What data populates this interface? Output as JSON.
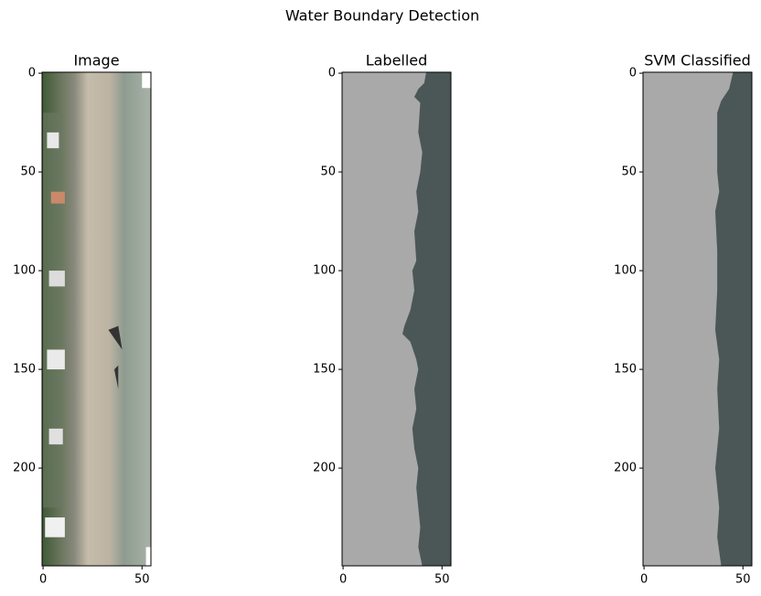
{
  "title": "Water Boundary Detection",
  "chart_data": [
    {
      "type": "image",
      "title": "Image",
      "xlim": [
        -0.5,
        54.5
      ],
      "ylim": [
        249.5,
        -0.5
      ],
      "xticks": [
        0,
        50
      ],
      "yticks": [
        0,
        50,
        100,
        150,
        200
      ]
    },
    {
      "type": "image",
      "title": "Labelled",
      "xlim": [
        -0.5,
        54.5
      ],
      "ylim": [
        249.5,
        -0.5
      ],
      "xticks": [
        0,
        50
      ],
      "yticks": [
        0,
        50,
        100,
        150,
        200
      ]
    },
    {
      "type": "image",
      "title": "SVM Classified",
      "xlim": [
        -0.5,
        54.5
      ],
      "ylim": [
        249.5,
        -0.5
      ],
      "xticks": [
        0,
        50
      ],
      "yticks": [
        0,
        50,
        100,
        150,
        200
      ]
    }
  ]
}
